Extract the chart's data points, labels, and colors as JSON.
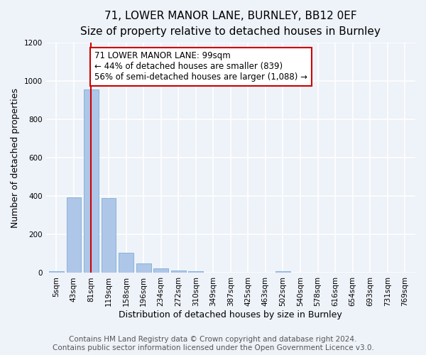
{
  "title": "71, LOWER MANOR LANE, BURNLEY, BB12 0EF",
  "subtitle": "Size of property relative to detached houses in Burnley",
  "xlabel": "Distribution of detached houses by size in Burnley",
  "ylabel": "Number of detached properties",
  "categories": [
    "5sqm",
    "43sqm",
    "81sqm",
    "119sqm",
    "158sqm",
    "196sqm",
    "234sqm",
    "272sqm",
    "310sqm",
    "349sqm",
    "387sqm",
    "425sqm",
    "463sqm",
    "502sqm",
    "540sqm",
    "578sqm",
    "616sqm",
    "654sqm",
    "693sqm",
    "731sqm",
    "769sqm"
  ],
  "values": [
    10,
    395,
    955,
    390,
    105,
    50,
    25,
    13,
    10,
    0,
    0,
    0,
    0,
    10,
    0,
    0,
    0,
    0,
    0,
    0,
    0
  ],
  "bar_color": "#aec6e8",
  "bar_edge_color": "#7bafd4",
  "vline_x_index": 2,
  "vline_color": "#cc0000",
  "annotation_text": "71 LOWER MANOR LANE: 99sqm\n← 44% of detached houses are smaller (839)\n56% of semi-detached houses are larger (1,088) →",
  "annotation_box_color": "#ffffff",
  "annotation_box_edge_color": "#cc0000",
  "ylim": [
    0,
    1200
  ],
  "yticks": [
    0,
    200,
    400,
    600,
    800,
    1000,
    1200
  ],
  "footer_text": "Contains HM Land Registry data © Crown copyright and database right 2024.\nContains public sector information licensed under the Open Government Licence v3.0.",
  "bg_color": "#eef2f9",
  "plot_bg_color": "#eef2f9",
  "grid_color": "#ffffff",
  "title_fontsize": 11,
  "subtitle_fontsize": 9.5,
  "axis_label_fontsize": 9,
  "tick_fontsize": 7.5,
  "annotation_fontsize": 8.5,
  "footer_fontsize": 7.5
}
